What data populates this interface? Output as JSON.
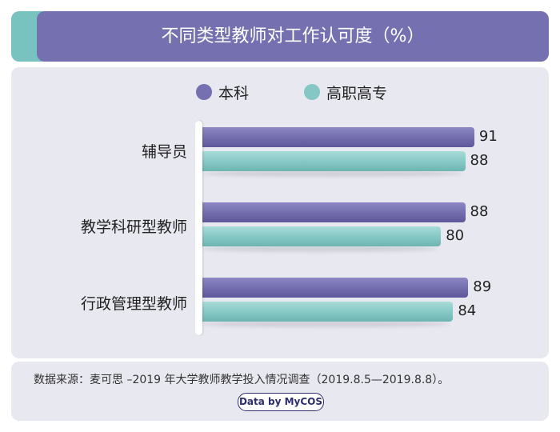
{
  "header": {
    "title": "不同类型教师对工作认可度（%）"
  },
  "legend": [
    {
      "label": "本科",
      "color": "#7570b0"
    },
    {
      "label": "高职高专",
      "color": "#84c7c4"
    }
  ],
  "chart_data": {
    "type": "bar",
    "orientation": "horizontal",
    "title": "不同类型教师对工作认可度（%）",
    "categories": [
      "辅导员",
      "教学科研型教师",
      "行政管理型教师"
    ],
    "series": [
      {
        "name": "本科",
        "values": [
          91,
          88,
          89
        ],
        "color": "#7570b0"
      },
      {
        "name": "高职高专",
        "values": [
          88,
          80,
          84
        ],
        "color": "#84c7c4"
      }
    ],
    "xlim": [
      0,
      100
    ],
    "grid": false,
    "legend_position": "top"
  },
  "footer": {
    "source": "数据来源：麦可思 –2019 年大学教师教学投入情况调查（2019.8.5—2019.8.8）。",
    "badge": "Data by MyCOS"
  }
}
